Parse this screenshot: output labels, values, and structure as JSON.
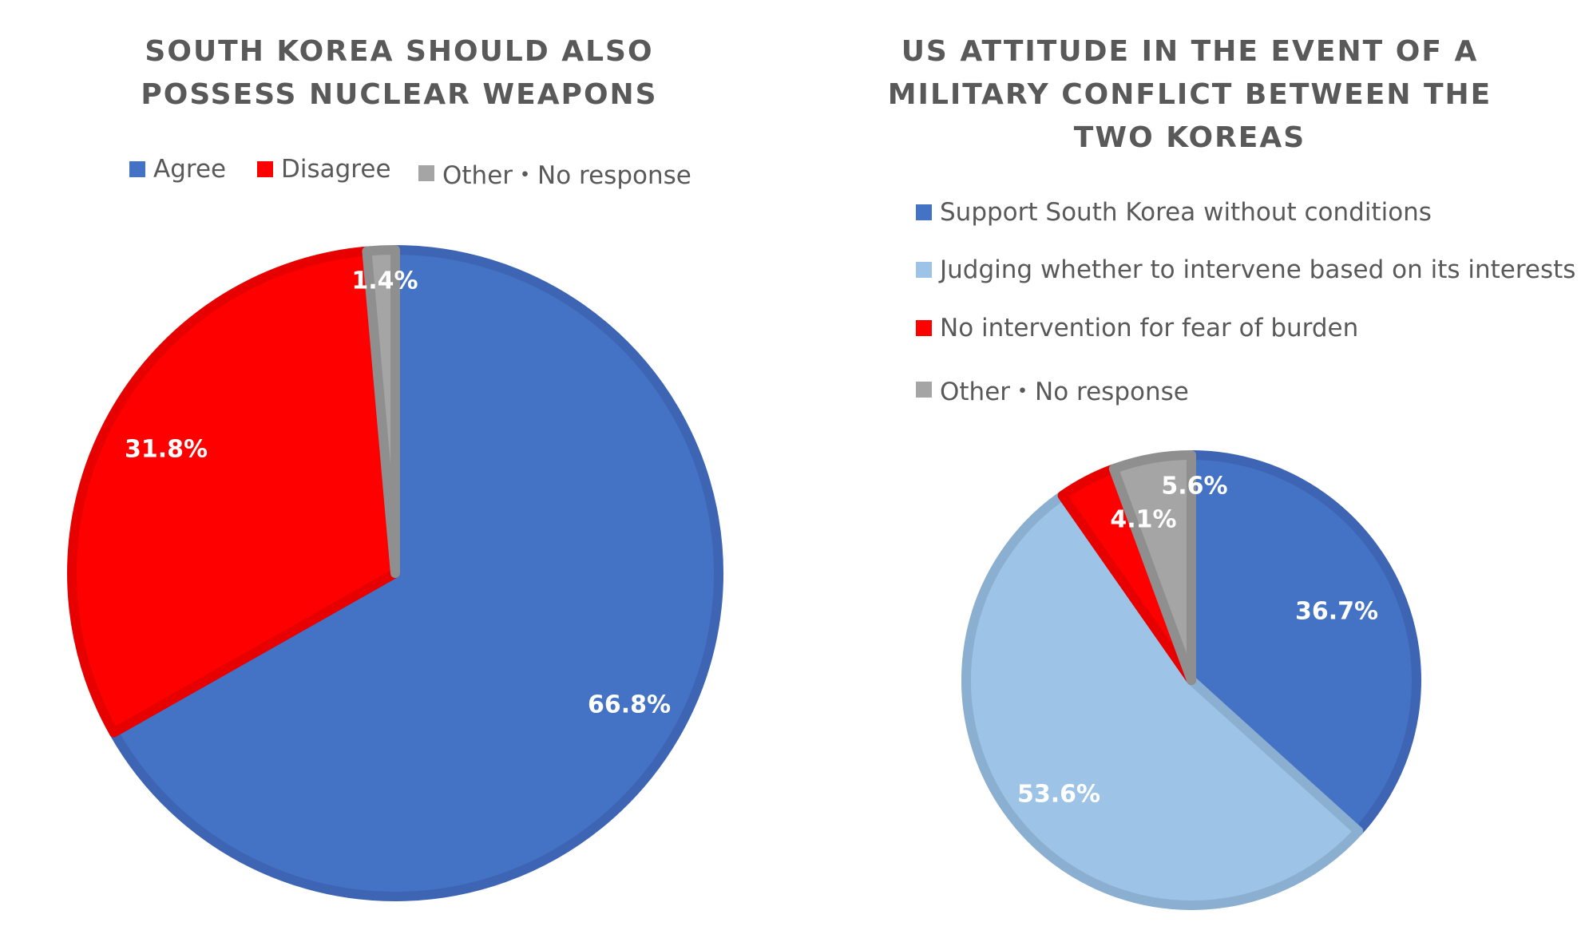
{
  "chart_data": [
    {
      "type": "pie",
      "title": "SOUTH KOREA SHOULD ALSO POSSESS NUCLEAR WEAPONS",
      "title_lines": [
        "SOUTH KOREA SHOULD ALSO",
        "POSSESS NUCLEAR WEAPONS"
      ],
      "legend_position": "top",
      "start": "top, clockwise",
      "slices": [
        {
          "label": "Agree",
          "value": 66.8,
          "value_label": "66.8%",
          "color": "#4472C4",
          "edge": "#3D65B4"
        },
        {
          "label": "Disagree",
          "value": 31.8,
          "value_label": "31.8%",
          "color": "#FF0000",
          "edge": "#E60000"
        },
        {
          "label": "Other・No response",
          "value": 1.4,
          "value_label": "1.4%",
          "color": "#A5A5A5",
          "edge": "#8F8F8F"
        }
      ]
    },
    {
      "type": "pie",
      "title": "US ATTITUDE IN THE EVENT OF A MILITARY CONFLICT BETWEEN THE TWO KOREAS",
      "title_lines": [
        "US ATTITUDE IN THE EVENT OF A",
        "MILITARY CONFLICT BETWEEN THE",
        "TWO KOREAS"
      ],
      "legend_position": "top",
      "start": "top, clockwise",
      "slices": [
        {
          "label": "Support South Korea without conditions",
          "value": 36.7,
          "value_label": "36.7%",
          "color": "#4472C4",
          "edge": "#3D65B4"
        },
        {
          "label": "Judging whether to intervene based on its interests",
          "value": 53.6,
          "value_label": "53.6%",
          "color": "#9DC3E6",
          "edge": "#8BAFD0"
        },
        {
          "label": "No intervention for fear of burden",
          "value": 4.1,
          "value_label": "4.1%",
          "color": "#FF0000",
          "edge": "#E60000"
        },
        {
          "label": "Other・No response",
          "value": 5.6,
          "value_label": "5.6%",
          "color": "#A5A5A5",
          "edge": "#8F8F8F"
        }
      ]
    }
  ]
}
